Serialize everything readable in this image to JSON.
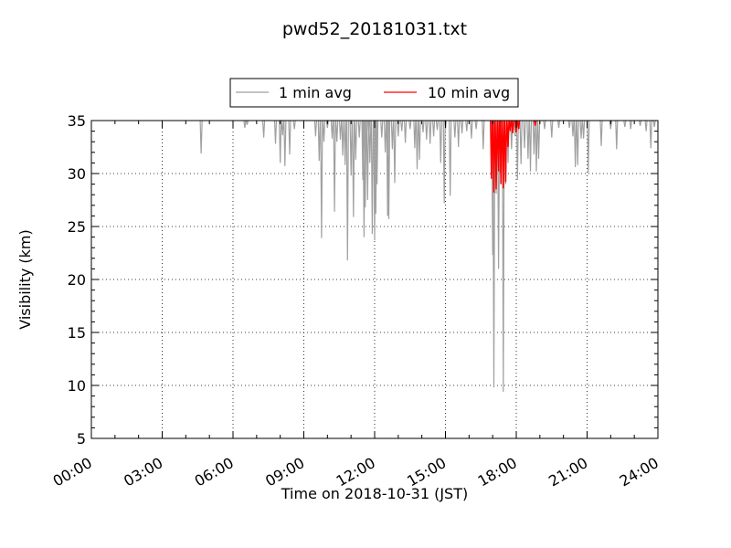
{
  "chart_data": {
    "type": "line",
    "title": "pwd52_20181031.txt",
    "xlabel": "Time on 2018-10-31 (JST)",
    "ylabel": "Visibility (km)",
    "xlim": [
      0,
      24
    ],
    "ylim": [
      5,
      35
    ],
    "x_ticks": [
      "00:00",
      "03:00",
      "06:00",
      "09:00",
      "12:00",
      "15:00",
      "18:00",
      "21:00",
      "24:00"
    ],
    "y_ticks": [
      5,
      10,
      15,
      20,
      25,
      30,
      35
    ],
    "grid": true,
    "legend_position": "top-center",
    "series": [
      {
        "name": "1 min avg",
        "color": "#a0a0a0",
        "dips": [
          [
            4.65,
            31.9
          ],
          [
            6.5,
            34.3
          ],
          [
            6.6,
            34.6
          ],
          [
            7.3,
            33.4
          ],
          [
            7.8,
            32.8
          ],
          [
            8.0,
            31.0
          ],
          [
            8.1,
            33.6
          ],
          [
            8.2,
            30.7
          ],
          [
            8.4,
            31.8
          ],
          [
            8.6,
            34.2
          ],
          [
            9.5,
            33.5
          ],
          [
            9.65,
            31.2
          ],
          [
            9.75,
            23.9
          ],
          [
            9.85,
            33.0
          ],
          [
            10.0,
            34.3
          ],
          [
            10.2,
            33.3
          ],
          [
            10.3,
            26.4
          ],
          [
            10.4,
            33.0
          ],
          [
            10.55,
            33.2
          ],
          [
            10.65,
            31.7
          ],
          [
            10.75,
            30.8
          ],
          [
            10.85,
            21.8
          ],
          [
            11.0,
            29.8
          ],
          [
            11.1,
            25.9
          ],
          [
            11.2,
            31.3
          ],
          [
            11.35,
            33.4
          ],
          [
            11.5,
            29.4
          ],
          [
            11.55,
            24.0
          ],
          [
            11.6,
            26.8
          ],
          [
            11.7,
            27.5
          ],
          [
            11.75,
            33.2
          ],
          [
            11.8,
            31.0
          ],
          [
            11.9,
            24.3
          ],
          [
            12.0,
            23.7
          ],
          [
            12.05,
            26.2
          ],
          [
            12.1,
            29.0
          ],
          [
            12.3,
            33.4
          ],
          [
            12.45,
            32.0
          ],
          [
            12.55,
            26.0
          ],
          [
            12.6,
            25.7
          ],
          [
            12.75,
            32.3
          ],
          [
            12.85,
            29.1
          ],
          [
            13.0,
            33.5
          ],
          [
            13.15,
            34.0
          ],
          [
            13.3,
            32.9
          ],
          [
            13.5,
            34.2
          ],
          [
            13.7,
            32.4
          ],
          [
            13.8,
            30.4
          ],
          [
            13.9,
            31.3
          ],
          [
            14.05,
            33.9
          ],
          [
            14.2,
            33.2
          ],
          [
            14.35,
            32.8
          ],
          [
            14.5,
            33.5
          ],
          [
            14.65,
            34.1
          ],
          [
            14.8,
            31.0
          ],
          [
            14.95,
            27.2
          ],
          [
            15.0,
            34.1
          ],
          [
            15.2,
            27.9
          ],
          [
            15.4,
            33.4
          ],
          [
            15.55,
            32.5
          ],
          [
            15.7,
            33.8
          ],
          [
            15.9,
            34.0
          ],
          [
            16.1,
            33.3
          ],
          [
            16.3,
            34.2
          ],
          [
            16.6,
            32.3
          ],
          [
            17.0,
            22.3
          ],
          [
            17.05,
            9.8
          ],
          [
            17.15,
            28.1
          ],
          [
            17.25,
            21.0
          ],
          [
            17.3,
            30.0
          ],
          [
            17.45,
            9.4
          ],
          [
            17.55,
            29.0
          ],
          [
            17.65,
            31.0
          ],
          [
            17.8,
            32.3
          ],
          [
            17.95,
            33.5
          ],
          [
            18.05,
            29.4
          ],
          [
            18.2,
            30.9
          ],
          [
            18.35,
            32.4
          ],
          [
            18.5,
            31.4
          ],
          [
            18.6,
            30.2
          ],
          [
            18.75,
            31.8
          ],
          [
            18.85,
            30.2
          ],
          [
            18.95,
            31.4
          ],
          [
            19.2,
            34.2
          ],
          [
            19.5,
            33.4
          ],
          [
            19.8,
            34.3
          ],
          [
            20.25,
            34.3
          ],
          [
            20.4,
            33.5
          ],
          [
            20.5,
            30.6
          ],
          [
            20.6,
            30.8
          ],
          [
            20.75,
            33.3
          ],
          [
            20.85,
            33.3
          ],
          [
            21.05,
            30.1
          ],
          [
            21.6,
            32.6
          ],
          [
            22.0,
            34.2
          ],
          [
            22.25,
            32.3
          ],
          [
            22.6,
            34.4
          ],
          [
            22.85,
            34.2
          ],
          [
            23.25,
            34.5
          ],
          [
            23.5,
            34.0
          ],
          [
            23.7,
            32.4
          ],
          [
            23.85,
            34.4
          ]
        ]
      },
      {
        "name": "10 min avg",
        "color": "#ff0000",
        "dips": [
          [
            16.95,
            29.5
          ],
          [
            17.05,
            28.2
          ],
          [
            17.15,
            28.5
          ],
          [
            17.25,
            30.2
          ],
          [
            17.35,
            29.0
          ],
          [
            17.45,
            28.6
          ],
          [
            17.55,
            29.2
          ],
          [
            17.65,
            32.5
          ],
          [
            17.75,
            34.0
          ],
          [
            17.85,
            33.8
          ],
          [
            18.0,
            33.9
          ],
          [
            18.1,
            34.2
          ],
          [
            18.8,
            34.5
          ]
        ]
      }
    ]
  }
}
